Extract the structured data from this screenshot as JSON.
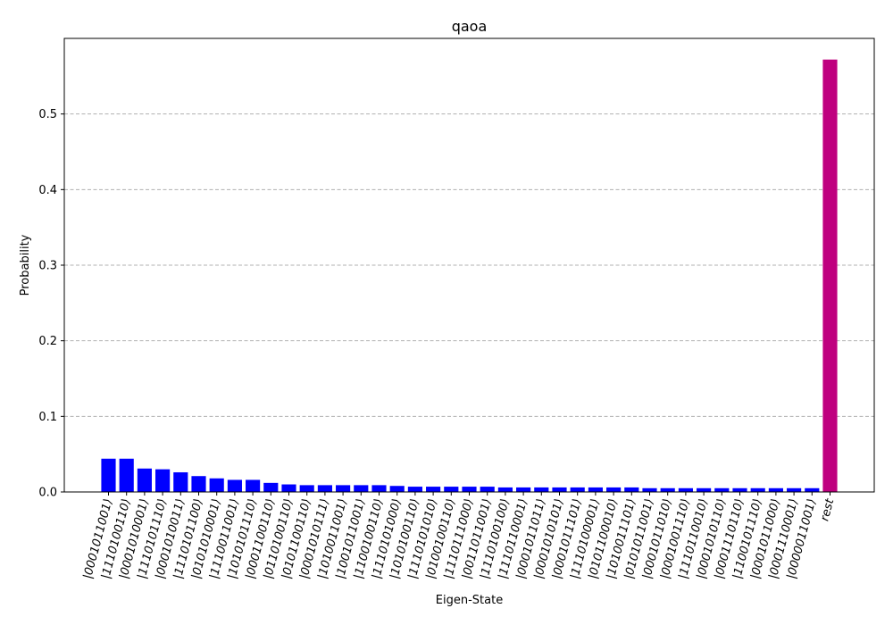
{
  "chart_data": {
    "type": "bar",
    "title": "qaoa",
    "xlabel": "Eigen-State",
    "ylabel": "Probability",
    "ylim": [
      0,
      0.6
    ],
    "yticks": [
      0.0,
      0.1,
      0.2,
      0.3,
      0.4,
      0.5
    ],
    "ytick_labels": [
      "0.0",
      "0.1",
      "0.2",
      "0.3",
      "0.4",
      "0.5"
    ],
    "grid": "horizontal dashed",
    "colors": {
      "states": "#0000ff",
      "rest": "#bf007f",
      "grid": "#b0b0b0"
    },
    "categories": [
      "|0001011001⟩",
      "|1110100110⟩",
      "|0001010001⟩",
      "|1110101110⟩",
      "|0001010011⟩",
      "|1110101100⟩",
      "|0101010001⟩",
      "|1110011001⟩",
      "|1010101110⟩",
      "|0001100110⟩",
      "|0110100110⟩",
      "|0101100110⟩",
      "|0001010111⟩",
      "|1010011001⟩",
      "|1001011001⟩",
      "|1100100110⟩",
      "|1110101000⟩",
      "|1010100110⟩",
      "|1110101010⟩",
      "|0100100110⟩",
      "|1110111000⟩",
      "|0011011001⟩",
      "|1110100100⟩",
      "|1110110001⟩",
      "|0001011011⟩",
      "|0001010101⟩",
      "|0001011101⟩",
      "|1110100001⟩",
      "|0101100010⟩",
      "|1010011101⟩",
      "|0101011001⟩",
      "|0001011010⟩",
      "|0001001110⟩",
      "|1110110010⟩",
      "|0001010110⟩",
      "|0001110110⟩",
      "|1100101110⟩",
      "|0001011000⟩",
      "|0001110001⟩",
      "|0000011001⟩",
      "rest"
    ],
    "values": [
      0.044,
      0.044,
      0.031,
      0.03,
      0.026,
      0.021,
      0.018,
      0.016,
      0.016,
      0.012,
      0.01,
      0.009,
      0.009,
      0.009,
      0.009,
      0.009,
      0.008,
      0.007,
      0.007,
      0.007,
      0.007,
      0.007,
      0.006,
      0.006,
      0.006,
      0.006,
      0.006,
      0.006,
      0.006,
      0.006,
      0.005,
      0.005,
      0.005,
      0.005,
      0.005,
      0.005,
      0.005,
      0.005,
      0.005,
      0.005,
      0.572
    ]
  }
}
